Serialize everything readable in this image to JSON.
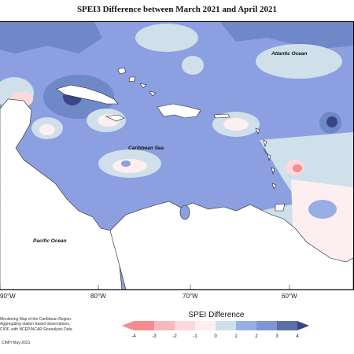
{
  "title": "SPEI3 Difference between March 2021 and April 2021",
  "map": {
    "labels": {
      "atlantic": "Atlantic Ocean",
      "caribbean": "Caribbean Sea",
      "pacific": "Pacific Ocean"
    },
    "longitude_ticks": [
      "90°W",
      "80°W",
      "70°W",
      "60°W"
    ]
  },
  "footer": {
    "line1": "Monitoring Map of the Caribbean Region.",
    "line2": "Aggregating station based observations,",
    "line3": "CIOF, with NCEP/NCAR Reanalysis Data",
    "credit": "CIMH May-2021"
  },
  "legend": {
    "title": "SPEI Difference",
    "ticks": [
      "-4",
      "-3",
      "-2",
      "-1",
      "0",
      "1",
      "2",
      "3",
      "4"
    ],
    "colors": [
      "#f48c92",
      "#f7b9bd",
      "#fbd9dc",
      "#fdeeef",
      "#cfe0ea",
      "#9aaee6",
      "#7f95d8",
      "#5d6fa8",
      "#3b4585"
    ]
  }
}
